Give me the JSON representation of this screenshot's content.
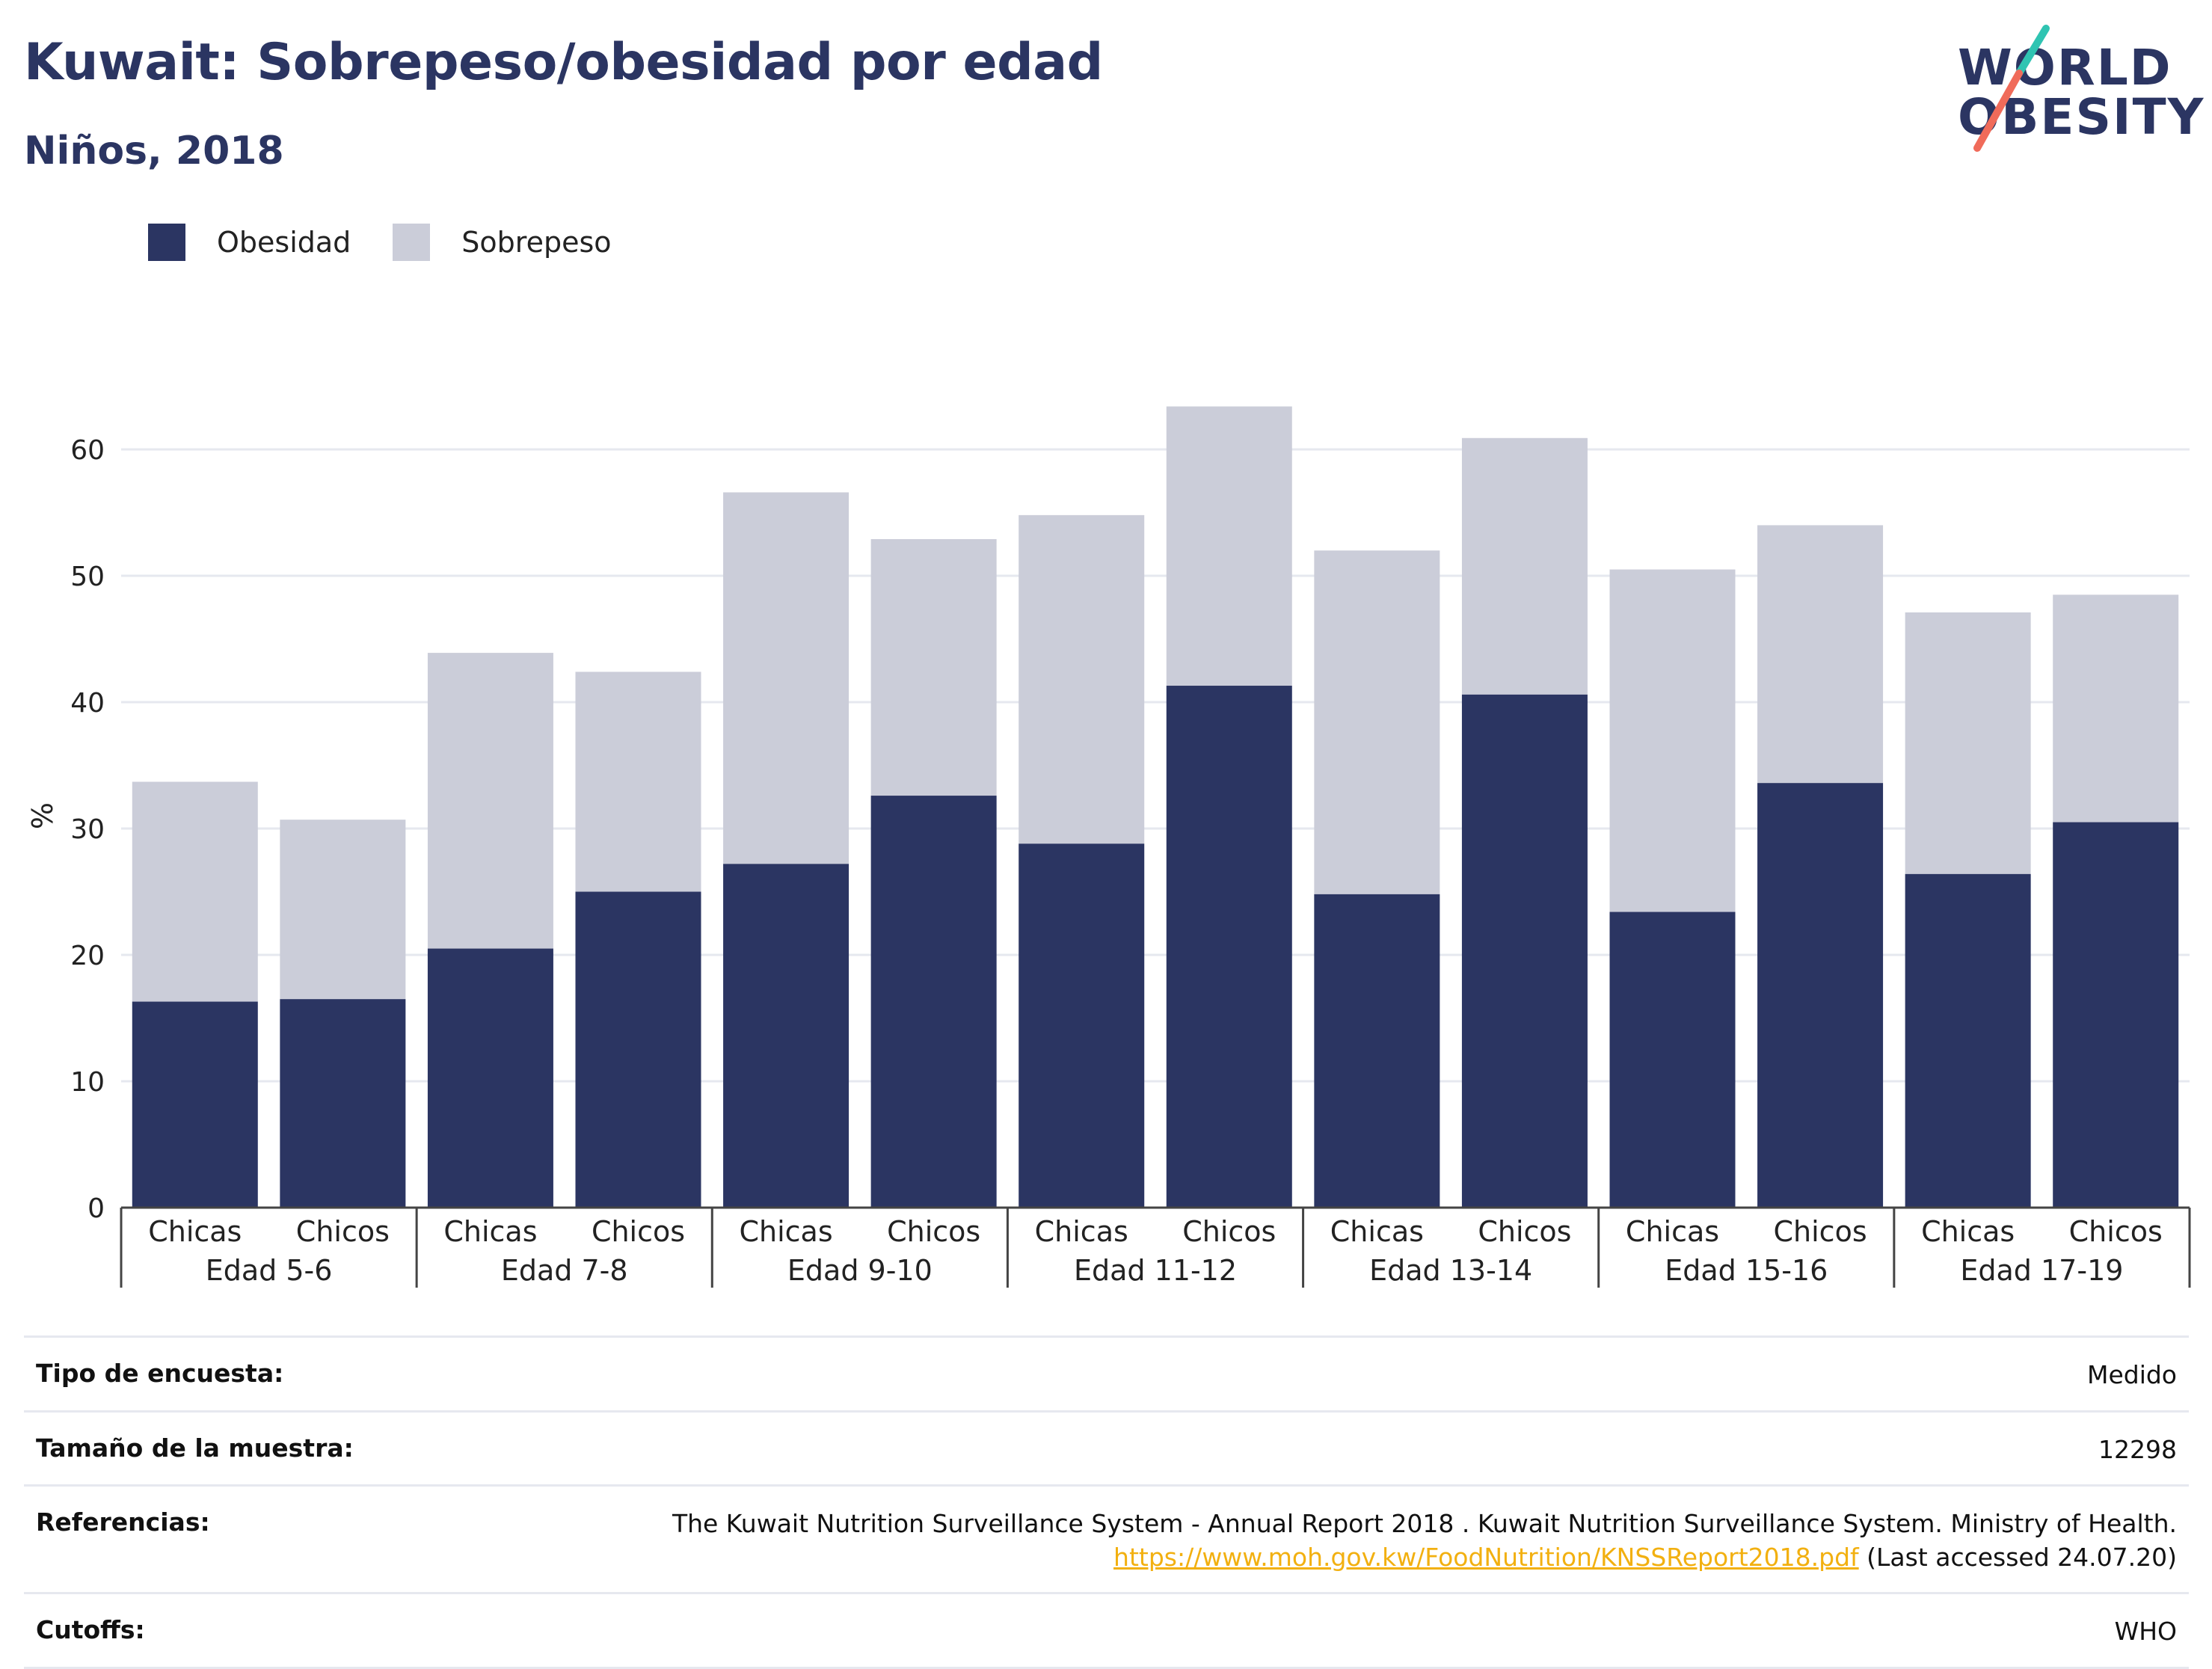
{
  "header": {
    "title": "Kuwait: Sobrepeso/obesidad por edad",
    "subtitle": "Niños, 2018"
  },
  "logo": {
    "line1": "WORLD",
    "line2": "OBESITY"
  },
  "colors": {
    "obesidad": "#2b3562",
    "sobrepeso": "#cbcdd9",
    "grid": "#e6e8ef",
    "link": "#f2b010",
    "logo_teal": "#2fc4b2",
    "logo_red": "#f06b5a"
  },
  "legend": [
    {
      "label": "Obesidad",
      "color": "#2b3562"
    },
    {
      "label": "Sobrepeso",
      "color": "#cbcdd9"
    }
  ],
  "chart_data": {
    "type": "bar",
    "stacked": true,
    "ylabel": "%",
    "ylim": [
      0,
      63
    ],
    "yticks": [
      0,
      10,
      20,
      30,
      40,
      50,
      60
    ],
    "grid": true,
    "legend_position": "top-left",
    "groups": [
      "Edad 5-6",
      "Edad 7-8",
      "Edad 9-10",
      "Edad 11-12",
      "Edad 13-14",
      "Edad 15-16",
      "Edad 17-19"
    ],
    "categories": [
      "Chicas",
      "Chicos",
      "Chicas",
      "Chicos",
      "Chicas",
      "Chicos",
      "Chicas",
      "Chicos",
      "Chicas",
      "Chicos",
      "Chicas",
      "Chicos",
      "Chicas",
      "Chicos"
    ],
    "series": [
      {
        "name": "Obesidad",
        "values": [
          16.3,
          16.5,
          20.5,
          25.0,
          27.2,
          32.6,
          28.8,
          41.3,
          24.8,
          40.6,
          23.4,
          33.6,
          26.4,
          30.5
        ]
      },
      {
        "name": "Sobrepeso",
        "values": [
          17.4,
          14.2,
          23.4,
          17.4,
          29.4,
          20.3,
          26.0,
          22.1,
          27.2,
          20.3,
          27.1,
          20.4,
          20.7,
          18.0
        ]
      }
    ]
  },
  "info": {
    "rows": [
      {
        "label": "Tipo de encuesta:",
        "value": "Medido"
      },
      {
        "label": "Tamaño de la muestra:",
        "value": "12298"
      },
      {
        "label": "Referencias:",
        "value": "The Kuwait Nutrition Surveillance System - Annual Report 2018 . Kuwait Nutrition Surveillance System. Ministry of Health.",
        "link": "https://www.moh.gov.kw/FoodNutrition/KNSSReport2018.pdf",
        "suffix": " (Last accessed 24.07.20)"
      },
      {
        "label": "Cutoffs:",
        "value": "WHO"
      }
    ]
  }
}
